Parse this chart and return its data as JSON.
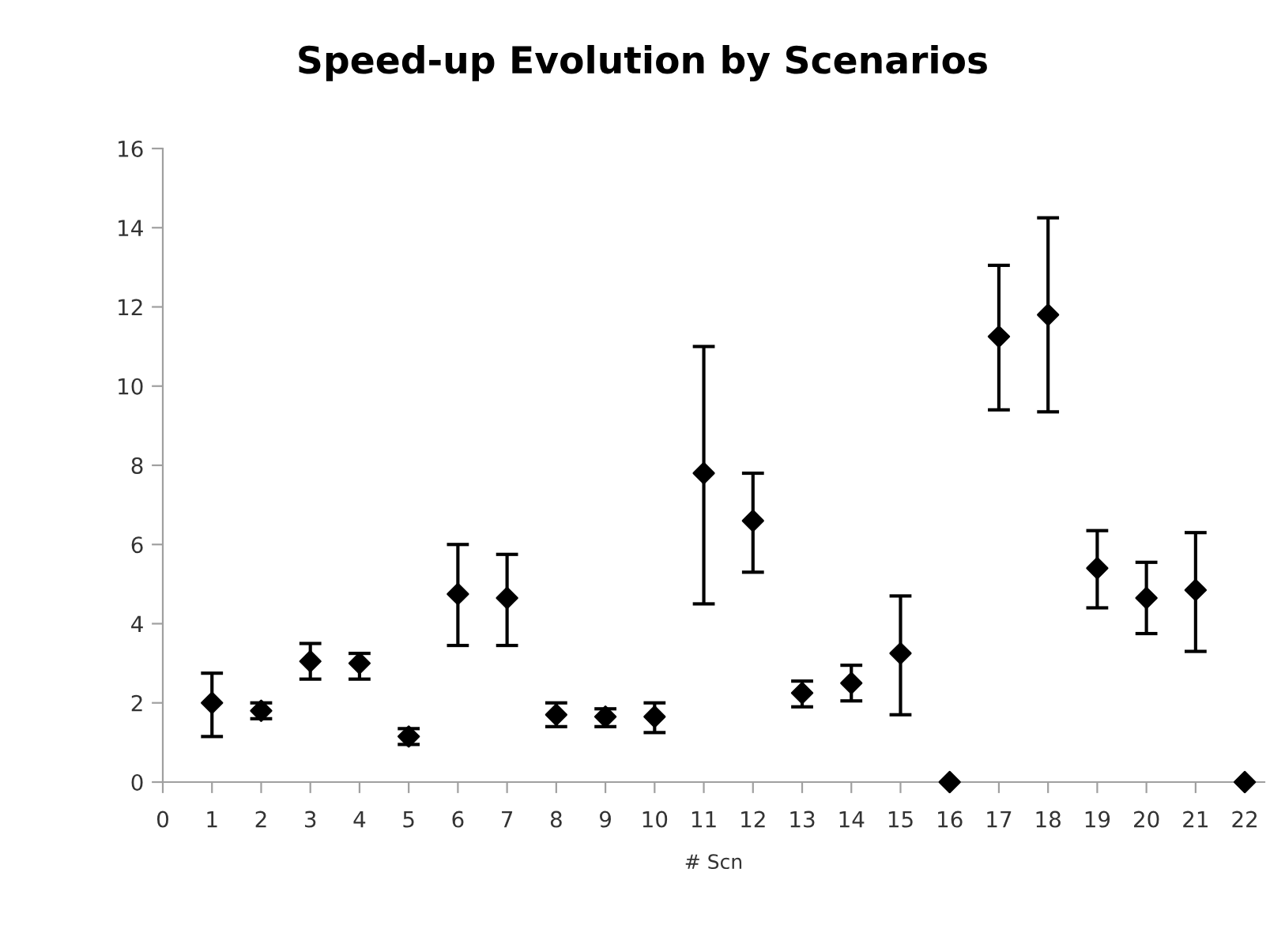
{
  "chart_data": {
    "type": "scatter",
    "title": "Speed-up Evolution by Scenarios",
    "xlabel": "# Scn",
    "x": [
      1,
      2,
      3,
      4,
      5,
      6,
      7,
      8,
      9,
      10,
      11,
      12,
      13,
      14,
      15,
      16,
      17,
      18,
      19,
      20,
      21,
      22
    ],
    "values": [
      2.0,
      1.8,
      3.05,
      3.0,
      1.15,
      4.75,
      4.65,
      1.7,
      1.65,
      1.65,
      7.8,
      6.6,
      2.25,
      2.5,
      3.25,
      0,
      11.25,
      11.8,
      5.4,
      4.65,
      4.85,
      0
    ],
    "errors": [
      [
        1.15,
        2.75
      ],
      [
        1.6,
        2.0
      ],
      [
        2.6,
        3.5
      ],
      [
        2.6,
        3.25
      ],
      [
        0.95,
        1.35
      ],
      [
        3.45,
        6.0
      ],
      [
        3.45,
        5.75
      ],
      [
        1.4,
        2.0
      ],
      [
        1.4,
        1.85
      ],
      [
        1.25,
        2.0
      ],
      [
        4.5,
        11.0
      ],
      [
        5.3,
        7.8
      ],
      [
        1.9,
        2.55
      ],
      [
        2.05,
        2.95
      ],
      [
        1.7,
        4.7
      ],
      null,
      [
        9.4,
        13.05
      ],
      [
        9.35,
        14.25
      ],
      [
        4.4,
        6.35
      ],
      [
        3.75,
        5.55
      ],
      [
        3.3,
        6.3
      ],
      null
    ],
    "color": "#000000",
    "marker": "diamond",
    "xlim": [
      0,
      22.4
    ],
    "xticks": [
      0,
      1,
      2,
      3,
      4,
      5,
      6,
      7,
      8,
      9,
      10,
      11,
      12,
      13,
      14,
      15,
      16,
      17,
      18,
      19,
      20,
      21,
      22
    ],
    "ylim": [
      0,
      16
    ],
    "yticks": [
      0,
      2,
      4,
      6,
      8,
      10,
      12,
      14,
      16
    ],
    "grid": false,
    "legend": false
  }
}
